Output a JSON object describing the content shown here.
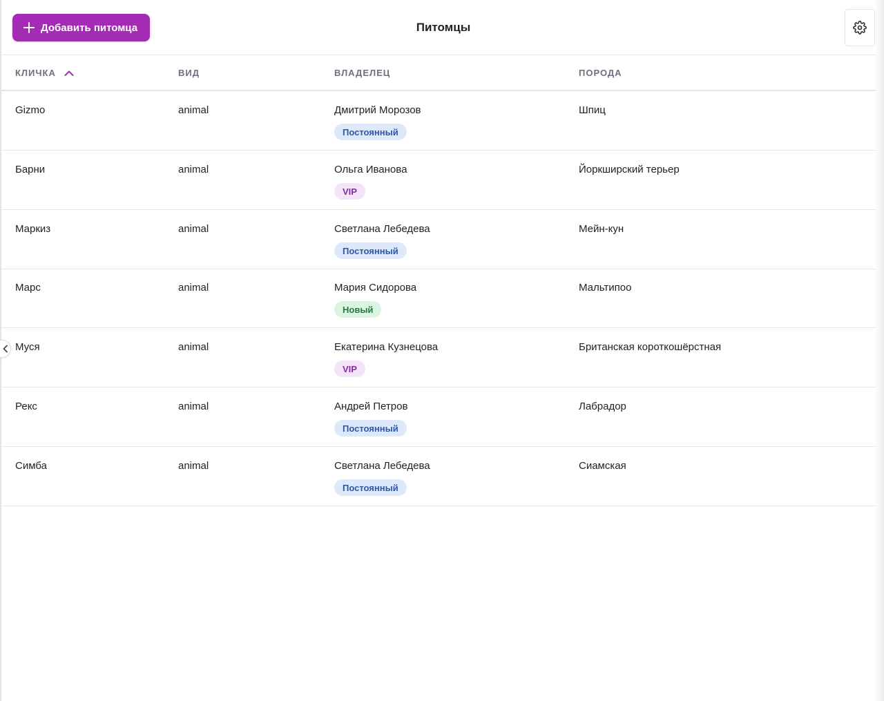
{
  "header": {
    "add_button_label": "Добавить питомца",
    "title": "Питомцы"
  },
  "table": {
    "columns": [
      {
        "label": "КЛИЧКА",
        "sorted": "asc"
      },
      {
        "label": "ВИД"
      },
      {
        "label": "ВЛАДЕЛЕЦ"
      },
      {
        "label": "ПОРОДА"
      }
    ],
    "rows": [
      {
        "name": "Gizmo",
        "species": "animal",
        "owner": "Дмитрий Морозов",
        "status": "Постоянный",
        "status_type": "regular",
        "breed": "Шпиц"
      },
      {
        "name": "Барни",
        "species": "animal",
        "owner": "Ольга Иванова",
        "status": "VIP",
        "status_type": "vip",
        "breed": "Йоркширский терьер"
      },
      {
        "name": "Маркиз",
        "species": "animal",
        "owner": "Светлана Лебедева",
        "status": "Постоянный",
        "status_type": "regular",
        "breed": "Мейн-кун"
      },
      {
        "name": "Марс",
        "species": "animal",
        "owner": "Мария Сидорова",
        "status": "Новый",
        "status_type": "new",
        "breed": "Мальтипоо"
      },
      {
        "name": "Муся",
        "species": "animal",
        "owner": "Екатерина Кузнецова",
        "status": "VIP",
        "status_type": "vip",
        "breed": "Британская короткошёрстная"
      },
      {
        "name": "Рекс",
        "species": "animal",
        "owner": "Андрей Петров",
        "status": "Постоянный",
        "status_type": "regular",
        "breed": "Лабрадор"
      },
      {
        "name": "Симба",
        "species": "animal",
        "owner": "Светлана Лебедева",
        "status": "Постоянный",
        "status_type": "regular",
        "breed": "Сиамская"
      }
    ]
  },
  "icons": {
    "add": "plus-icon",
    "settings": "gear-icon",
    "sort": "chevron-up-icon",
    "collapse": "chevron-left-icon"
  },
  "colors": {
    "accent": "#a42bb4",
    "badge_regular_bg": "#dde9fb",
    "badge_vip_bg": "#f4e3f9",
    "badge_new_bg": "#dcf5e3"
  }
}
